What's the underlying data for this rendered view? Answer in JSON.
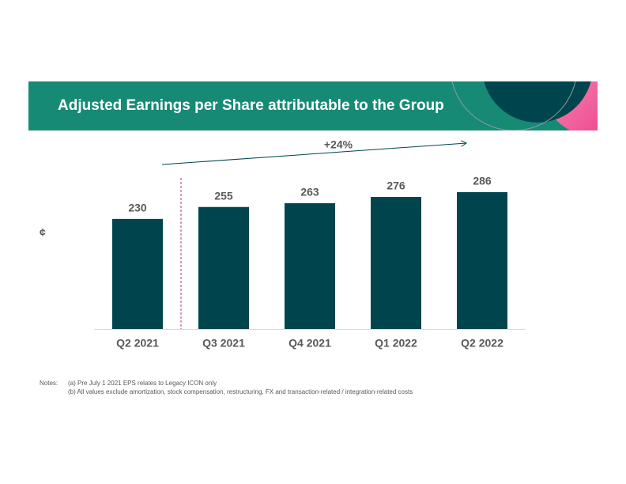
{
  "chart_data": {
    "type": "bar",
    "title": "Adjusted Earnings per Share attributable to the Group",
    "y_label": "¢",
    "annotation": "+24%",
    "categories": [
      "Q2 2021",
      "Q3 2021",
      "Q4 2021",
      "Q1 2022",
      "Q2 2022"
    ],
    "values": [
      230,
      255,
      263,
      276,
      286
    ],
    "color": "#00454d",
    "ylim": [
      0,
      300
    ]
  },
  "notes": {
    "label": "Notes:",
    "items": [
      "(a)  Pre July 1 2021 EPS relates to Legacy ICON only",
      "(b)  All values exclude amortization, stock compensation, restructuring, FX and transaction-related / integration-related costs"
    ]
  }
}
